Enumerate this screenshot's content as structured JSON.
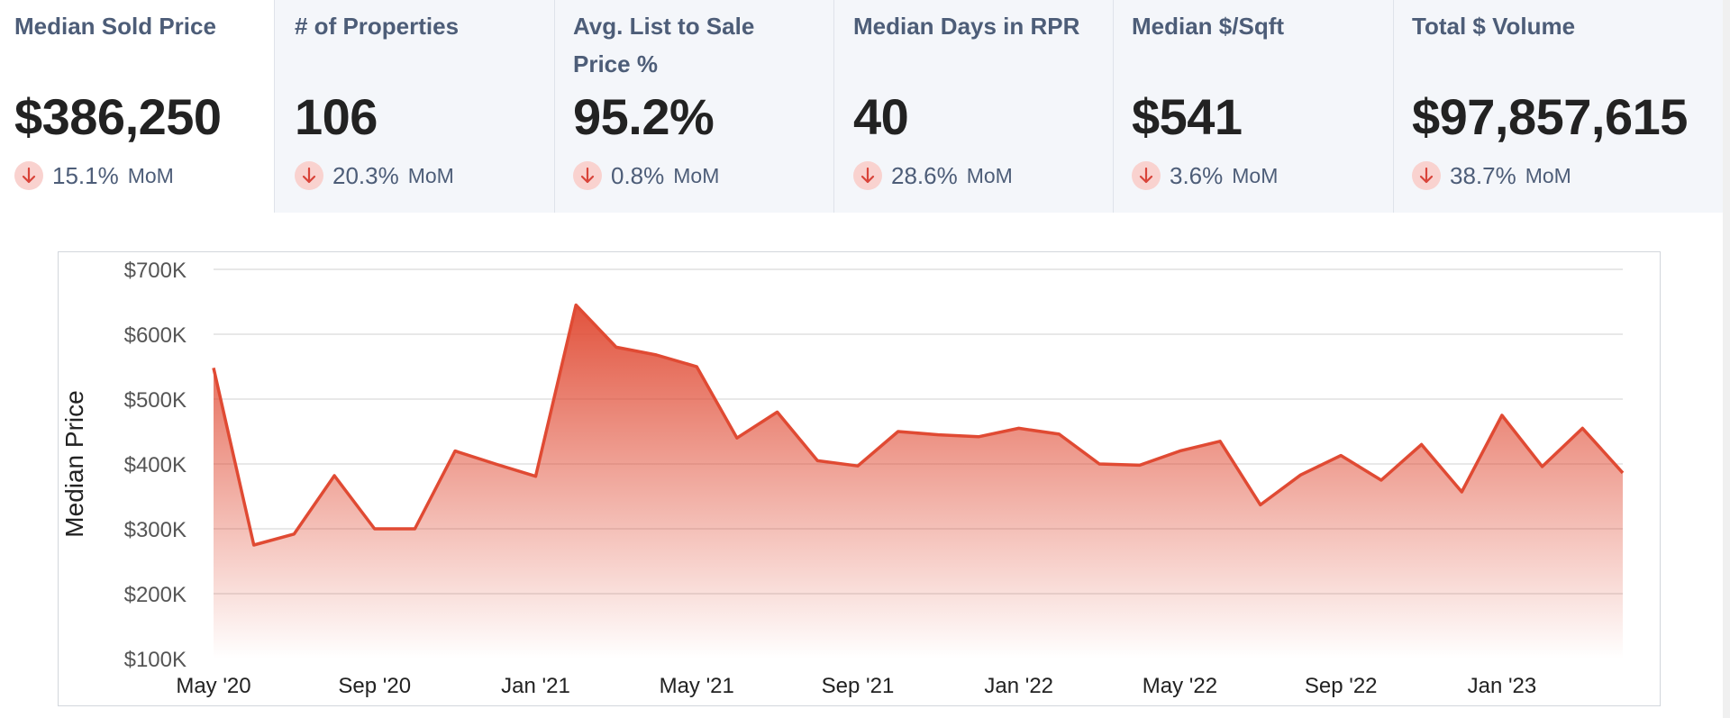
{
  "tiles": [
    {
      "title": "Median Sold Price",
      "value": "$386,250",
      "change": "15.1%",
      "period": "MoM",
      "direction": "down",
      "active": true
    },
    {
      "title": "# of Properties",
      "value": "106",
      "change": "20.3%",
      "period": "MoM",
      "direction": "down",
      "active": false
    },
    {
      "title": "Avg. List to Sale Price %",
      "value": "95.2%",
      "change": "0.8%",
      "period": "MoM",
      "direction": "down",
      "active": false
    },
    {
      "title": "Median Days in RPR",
      "value": "40",
      "change": "28.6%",
      "period": "MoM",
      "direction": "down",
      "active": false
    },
    {
      "title": "Median $/Sqft",
      "value": "$541",
      "change": "3.6%",
      "period": "MoM",
      "direction": "down",
      "active": false
    },
    {
      "title": "Total $ Volume",
      "value": "$97,857,615",
      "change": "38.7%",
      "period": "MoM",
      "direction": "down",
      "active": false
    }
  ],
  "colors": {
    "line": "#e04a33",
    "fill_top": "#e04a33",
    "down_arrow": "#d9443a",
    "down_badge": "#f9d2cf",
    "grid": "#d9d9d9"
  },
  "chart_data": {
    "type": "area",
    "title": "",
    "xlabel": "",
    "ylabel": "Median Price",
    "ylim": [
      100000,
      700000
    ],
    "yticks": [
      100000,
      200000,
      300000,
      400000,
      500000,
      600000,
      700000
    ],
    "ytick_labels": [
      "$100K",
      "$200K",
      "$300K",
      "$400K",
      "$500K",
      "$600K",
      "$700K"
    ],
    "xtick_labels": [
      "May '20",
      "Sep '20",
      "Jan '21",
      "May '21",
      "Sep '21",
      "Jan '22",
      "May '22",
      "Sep '22",
      "Jan '23"
    ],
    "xtick_indices": [
      0,
      4,
      8,
      12,
      16,
      20,
      24,
      28,
      32
    ],
    "grid": true,
    "x": [
      "May '20",
      "Jun '20",
      "Jul '20",
      "Aug '20",
      "Sep '20",
      "Oct '20",
      "Nov '20",
      "Dec '20",
      "Jan '21",
      "Feb '21",
      "Mar '21",
      "Apr '21",
      "May '21",
      "Jun '21",
      "Jul '21",
      "Aug '21",
      "Sep '21",
      "Oct '21",
      "Nov '21",
      "Dec '21",
      "Jan '22",
      "Feb '22",
      "Mar '22",
      "Apr '22",
      "May '22",
      "Jun '22",
      "Jul '22",
      "Aug '22",
      "Sep '22",
      "Oct '22",
      "Nov '22",
      "Dec '22",
      "Jan '23",
      "Feb '23",
      "Mar '23",
      "Apr '23"
    ],
    "series": [
      {
        "name": "Median Sold Price",
        "values": [
          548000,
          275000,
          292000,
          382000,
          300000,
          300000,
          420000,
          400000,
          381000,
          645000,
          580000,
          568000,
          550000,
          440000,
          480000,
          405000,
          397000,
          450000,
          445000,
          442000,
          455000,
          446000,
          400000,
          398000,
          420000,
          435000,
          337000,
          383000,
          413000,
          375000,
          430000,
          357000,
          475000,
          396000,
          455000,
          386250
        ]
      }
    ]
  }
}
